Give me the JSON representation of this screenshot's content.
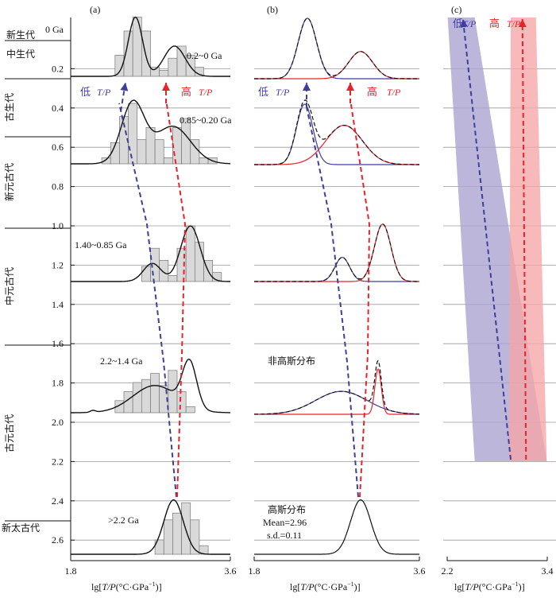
{
  "panels": {
    "a": "(a)",
    "b": "(b)",
    "c": "(c)"
  },
  "age_axis": {
    "ticks": [
      "0 Ga",
      "0.2",
      "0.4",
      "0.6",
      "0.8",
      "1.0",
      "1.2",
      "1.4",
      "1.6",
      "1.8",
      "2.0",
      "2.2",
      "2.4",
      "2.6"
    ],
    "eras": [
      "新生代",
      "中生代",
      "古生代",
      "新元古代",
      "中元古代",
      "古元古代",
      "新太古代"
    ]
  },
  "x_axis": {
    "label_prefix": "lg[",
    "label_tp": "T/P",
    "label_suffix": "(°C·GPa",
    "label_sup": "−1",
    "label_end": ")]",
    "a_ticks": [
      "1.8",
      "3.6"
    ],
    "b_ticks": [
      "1.8",
      "3.6"
    ],
    "c_ticks": [
      "2.2",
      "3.4"
    ]
  },
  "labels": {
    "low": "低",
    "high": "高",
    "tp": "T/P",
    "non_gaussian": "非高斯分布",
    "gaussian": "高斯分布",
    "mean": "Mean=2.96",
    "sd": "s.d.=0.11"
  },
  "chart_data": [
    {
      "type": "bar",
      "panel": "a",
      "description_units": "x = lg[T/P (°C·GPa^-1)], bars = relative frequency",
      "xlim": [
        1.8,
        3.6
      ],
      "groups": [
        {
          "label": "0.2~0 Ga",
          "bin_start": 2.3,
          "bin_width": 0.1,
          "values": [
            0.35,
            0.75,
            0.98,
            0.75,
            0.15,
            0.1,
            0.3,
            0.5,
            0.35,
            0.15
          ]
        },
        {
          "label": "0.85~0.20 Ga",
          "bin_start": 2.15,
          "bin_width": 0.1,
          "values": [
            0.1,
            0.35,
            0.78,
            1.0,
            0.4,
            0.6,
            0.4,
            0.1,
            0.6,
            0.75,
            0.4,
            0.1,
            0.1
          ]
        },
        {
          "label": "1.40~0.85 Ga",
          "bin_start": 2.6,
          "bin_width": 0.1,
          "values": [
            0.25,
            0.55,
            0.35,
            0.1,
            0.55,
            0.92,
            0.65,
            0.35,
            0.15
          ]
        },
        {
          "label": "2.2~1.4 Ga",
          "bin_start": 2.3,
          "bin_width": 0.1,
          "values": [
            0.2,
            0.35,
            0.5,
            0.55,
            0.65,
            0.45,
            0.7,
            0.35,
            0.1
          ]
        },
        {
          "label": ">2.2 Ga",
          "bin_start": 2.75,
          "bin_width": 0.1,
          "values": [
            0.25,
            0.6,
            0.72,
            0.9,
            0.6,
            0.15
          ]
        }
      ]
    },
    {
      "type": "line",
      "panel": "b",
      "description_units": "Gaussian mixture components per age group",
      "xlim": [
        1.8,
        3.6
      ],
      "groups": [
        {
          "low_mean": 2.38,
          "low_sd": 0.1,
          "low_amp": 1.0,
          "high_mean": 2.96,
          "high_sd": 0.13,
          "high_amp": 0.45
        },
        {
          "low_mean": 2.35,
          "low_sd": 0.09,
          "low_amp": 1.0,
          "high_mean": 2.78,
          "high_sd": 0.2,
          "high_amp": 0.65
        },
        {
          "low_mean": 2.76,
          "low_sd": 0.08,
          "low_amp": 0.4,
          "high_mean": 3.2,
          "high_sd": 0.09,
          "high_amp": 0.95
        },
        {
          "low_mean": 2.75,
          "low_sd": 0.28,
          "low_amp": 0.38,
          "high_mean": 3.15,
          "high_sd": 0.035,
          "high_amp": 0.75
        },
        {
          "gaussian_mean": 2.96,
          "gaussian_sd": 0.11
        }
      ]
    },
    {
      "type": "area",
      "panel": "c",
      "xlim": [
        2.2,
        3.4
      ],
      "low_band": {
        "top": [
          2.25,
          2.55
        ],
        "bottom": [
          2.55,
          3.35
        ],
        "color": "#a9a3cf"
      },
      "high_band": {
        "top": [
          2.95,
          3.23
        ],
        "bottom": [
          2.93,
          3.35
        ],
        "color": "#f5a5a6"
      }
    }
  ],
  "colors": {
    "low": "#3f3f9a",
    "high": "#e8222a",
    "bar_fill": "#d9d9d9",
    "grid": "#9a9a9a"
  }
}
